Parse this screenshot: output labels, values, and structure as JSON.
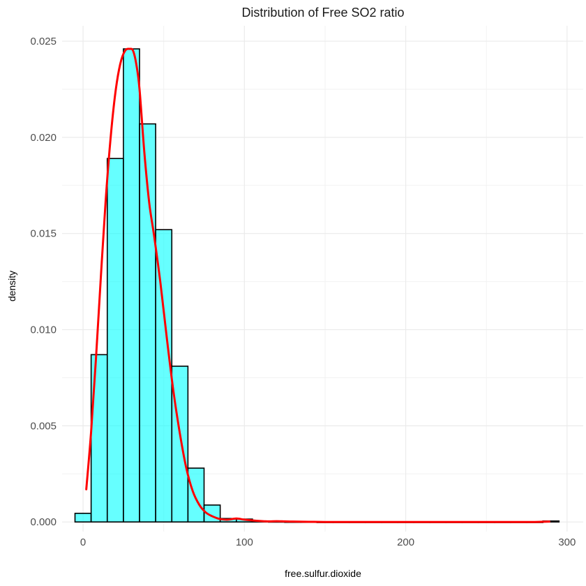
{
  "chart_data": {
    "type": "bar",
    "subtype": "histogram_with_density",
    "title": "Distribution of Free SO2 ratio",
    "xlabel": "free.sulfur.dioxide",
    "ylabel": "density",
    "xlim": [
      -13,
      310
    ],
    "ylim": [
      -0.0005,
      0.0258
    ],
    "x_ticks": [
      0,
      100,
      200,
      300
    ],
    "y_ticks": [
      0.0,
      0.005,
      0.01,
      0.015,
      0.02,
      0.025
    ],
    "y_tick_labels": [
      "0.000",
      "0.005",
      "0.010",
      "0.015",
      "0.020",
      "0.025"
    ],
    "grid": true,
    "legend": "none",
    "bar_fill": "#00ffff",
    "bar_fill_opacity": 0.6,
    "bar_stroke": "#000000",
    "density_color": "#ff0000",
    "bins": {
      "width": 10,
      "centers": [
        0,
        10,
        20,
        30,
        40,
        50,
        60,
        70,
        80,
        90,
        100,
        110,
        120,
        130,
        140,
        150,
        160,
        170,
        180,
        190,
        200,
        210,
        220,
        230,
        240,
        250,
        260,
        270,
        280,
        290
      ],
      "values": [
        0.00045,
        0.0087,
        0.0189,
        0.0246,
        0.0207,
        0.0152,
        0.0081,
        0.0028,
        0.00088,
        0.00018,
        0.00015,
        5e-05,
        2e-05,
        1e-05,
        1e-05,
        0.0,
        0.0,
        0.0,
        0.0,
        0.0,
        0.0,
        0.0,
        0.0,
        0.0,
        0.0,
        0.0,
        0.0,
        0.0,
        0.0,
        5e-05
      ]
    },
    "density_curve": {
      "x": [
        2,
        5,
        8,
        11,
        14,
        17,
        20,
        23,
        26,
        29,
        31,
        33,
        35,
        38,
        41,
        44,
        48,
        52,
        56,
        60,
        64,
        68,
        72,
        76,
        80,
        85,
        90,
        95,
        100,
        105,
        110,
        115,
        120,
        125,
        130,
        140,
        150,
        170,
        200,
        230,
        260,
        280,
        289
      ],
      "y": [
        0.0017,
        0.0047,
        0.0085,
        0.0127,
        0.0167,
        0.0199,
        0.0223,
        0.0238,
        0.0245,
        0.0246,
        0.0245,
        0.0238,
        0.0225,
        0.0192,
        0.0166,
        0.0149,
        0.0124,
        0.0095,
        0.0068,
        0.0046,
        0.0028,
        0.0016,
        0.0009,
        0.0005,
        0.0003,
        0.00015,
        0.00012,
        0.00018,
        0.00012,
        8e-05,
        5e-05,
        3e-05,
        4e-05,
        3e-05,
        2e-05,
        1e-05,
        0.0,
        0.0,
        0.0,
        0.0,
        0.0,
        0.0,
        2e-05
      ]
    }
  }
}
